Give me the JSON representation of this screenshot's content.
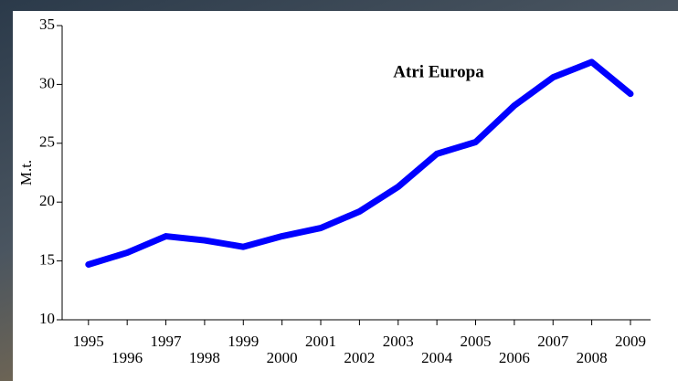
{
  "chart_data": {
    "type": "line",
    "annotation": "Atri Europa",
    "ylabel": "M.t.",
    "x": [
      1995,
      1996,
      1997,
      1998,
      1999,
      2000,
      2001,
      2002,
      2003,
      2004,
      2005,
      2006,
      2007,
      2008,
      2009
    ],
    "series": [
      {
        "color": "#0000ff",
        "values": [
          14.7,
          15.7,
          17.1,
          16.75,
          16.2,
          17.1,
          17.8,
          19.2,
          21.3,
          24.1,
          25.1,
          28.2,
          30.6,
          31.9,
          29.2
        ]
      }
    ],
    "xlim": [
      1994.32,
      2009.52
    ],
    "xticks": [
      1995,
      1996,
      1997,
      1998,
      1999,
      2000,
      2001,
      2002,
      2003,
      2004,
      2005,
      2006,
      2007,
      2008,
      2009
    ],
    "ylim": [
      10,
      35
    ],
    "yticks": [
      10,
      15,
      20,
      25,
      30,
      35
    ]
  }
}
